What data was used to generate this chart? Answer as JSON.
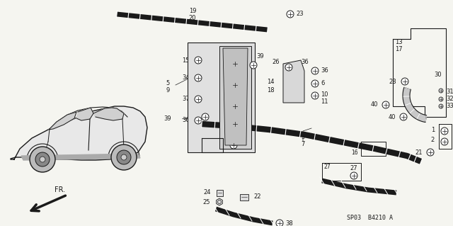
{
  "bg_color": "#f5f5f0",
  "diagram_code": "SP03  B4210 A",
  "fr_label": "FR.",
  "dark": "#1a1a1a",
  "gray": "#888888",
  "light_gray": "#cccccc"
}
